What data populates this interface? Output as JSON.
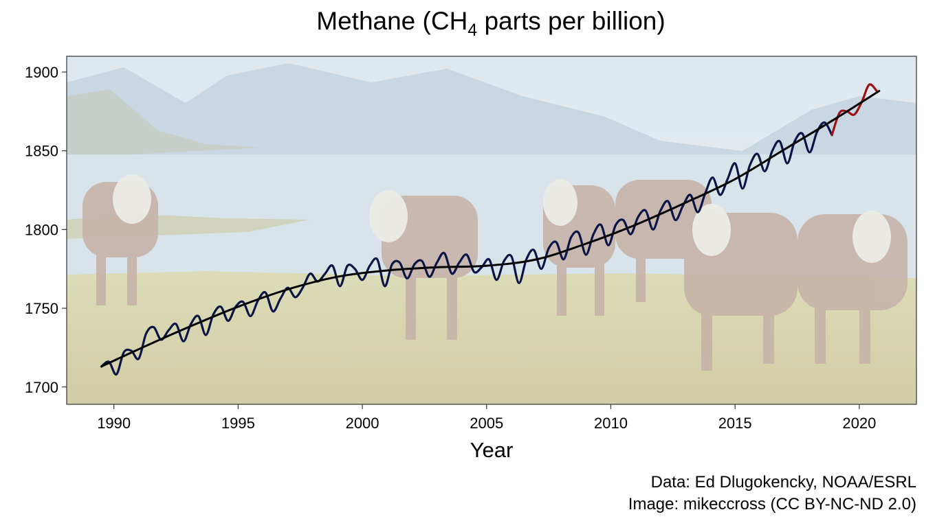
{
  "chart_data": {
    "type": "line",
    "title": {
      "prefix": "Methane (CH",
      "subscript": "4",
      "suffix": " parts per billion)"
    },
    "xlabel": "Year",
    "ylabel": "",
    "xlim": [
      1988.1,
      2022.3
    ],
    "ylim": [
      1689,
      1910
    ],
    "x_ticks": [
      1990,
      1995,
      2000,
      2005,
      2010,
      2015,
      2020
    ],
    "y_ticks": [
      1700,
      1750,
      1800,
      1850,
      1900
    ],
    "grid": false,
    "legend": "none",
    "background": "photo of cattle grazing beside a mountain lake (faded)",
    "series": [
      {
        "style": "monthly",
        "color": "#0b1446",
        "x": [
          1989.5,
          1989.8,
          1990.1,
          1990.4,
          1990.7,
          1991.0,
          1991.3,
          1991.6,
          1991.9,
          1992.2,
          1992.5,
          1992.8,
          1993.1,
          1993.4,
          1993.7,
          1994.0,
          1994.3,
          1994.6,
          1994.9,
          1995.2,
          1995.5,
          1995.8,
          1996.1,
          1996.4,
          1996.7,
          1997.0,
          1997.3,
          1997.6,
          1997.9,
          1998.2,
          1998.5,
          1998.8,
          1999.1,
          1999.4,
          1999.7,
          2000.0,
          2000.3,
          2000.6,
          2000.9,
          2001.2,
          2001.5,
          2001.8,
          2002.1,
          2002.4,
          2002.7,
          2003.0,
          2003.3,
          2003.6,
          2003.9,
          2004.2,
          2004.5,
          2004.8,
          2005.1,
          2005.4,
          2005.7,
          2006.0,
          2006.3,
          2006.6,
          2006.9,
          2007.2,
          2007.5,
          2007.8,
          2008.1,
          2008.4,
          2008.7,
          2009.0,
          2009.3,
          2009.6,
          2009.9,
          2010.2,
          2010.5,
          2010.8,
          2011.1,
          2011.4,
          2011.7,
          2012.0,
          2012.3,
          2012.6,
          2012.9,
          2013.2,
          2013.5,
          2013.8,
          2014.1,
          2014.4,
          2014.7,
          2015.0,
          2015.3,
          2015.6,
          2015.9,
          2016.2,
          2016.5,
          2016.8,
          2017.1,
          2017.4,
          2017.7,
          2018.0,
          2018.3,
          2018.6,
          2018.9
        ],
        "y": [
          1713,
          1716,
          1708,
          1722,
          1723,
          1718,
          1734,
          1738,
          1730,
          1736,
          1740,
          1729,
          1740,
          1745,
          1733,
          1746,
          1751,
          1742,
          1751,
          1754,
          1745,
          1755,
          1760,
          1748,
          1756,
          1763,
          1757,
          1763,
          1772,
          1767,
          1772,
          1777,
          1764,
          1777,
          1775,
          1768,
          1777,
          1781,
          1764,
          1778,
          1779,
          1769,
          1778,
          1780,
          1770,
          1779,
          1785,
          1772,
          1779,
          1784,
          1773,
          1776,
          1781,
          1768,
          1780,
          1783,
          1766,
          1781,
          1787,
          1775,
          1788,
          1792,
          1781,
          1795,
          1798,
          1784,
          1797,
          1803,
          1790,
          1803,
          1806,
          1797,
          1808,
          1812,
          1800,
          1812,
          1818,
          1806,
          1815,
          1822,
          1811,
          1823,
          1833,
          1822,
          1832,
          1842,
          1826,
          1841,
          1848,
          1837,
          1850,
          1856,
          1842,
          1856,
          1861,
          1849,
          1862,
          1868,
          1860
        ]
      },
      {
        "style": "monthly-latest",
        "color": "#9b1212",
        "x": [
          2018.9,
          2019.2,
          2019.5,
          2019.8,
          2020.1,
          2020.4,
          2020.7
        ],
        "y": [
          1860,
          1874,
          1875,
          1873,
          1881,
          1892,
          1888
        ]
      },
      {
        "style": "trend",
        "color": "#000000",
        "x": [
          1989.5,
          1991,
          1993,
          1995,
          1997,
          1999,
          2001,
          2003,
          2005,
          2007,
          2009,
          2011,
          2013,
          2015,
          2017,
          2019,
          2020.8
        ],
        "y": [
          1713,
          1724,
          1738,
          1751,
          1762,
          1770,
          1774,
          1776,
          1777,
          1781,
          1791,
          1803,
          1817,
          1832,
          1851,
          1870,
          1888
        ]
      }
    ]
  },
  "captions": [
    "Data: Ed Dlugokencky, NOAA/ESRL",
    "Image: mikeccross (CC BY-NC-ND 2.0)"
  ],
  "colors": {
    "series_main": "#0b1446",
    "series_latest": "#9b1212",
    "trend": "#000000"
  }
}
